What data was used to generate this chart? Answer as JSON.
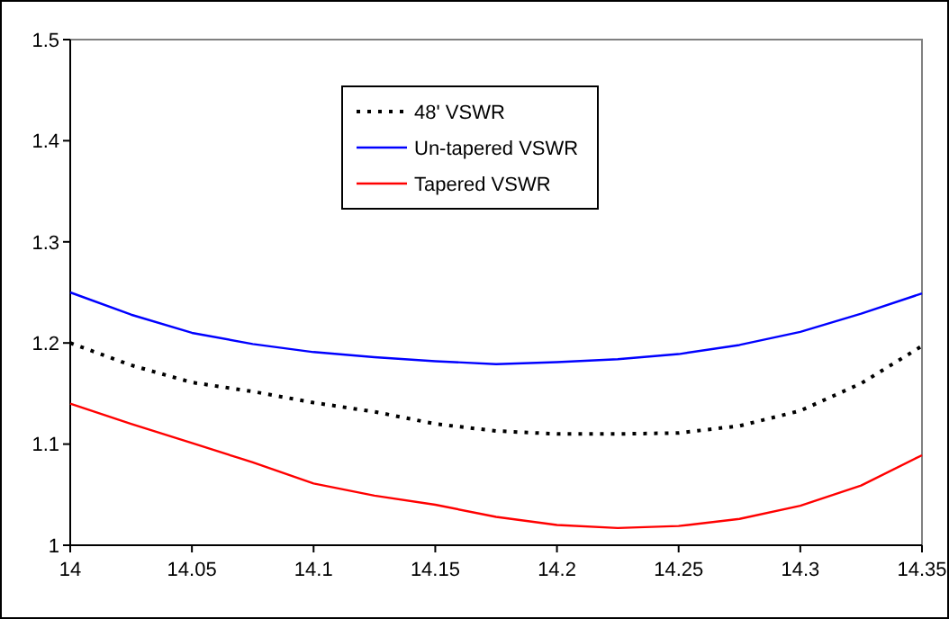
{
  "chart_data": {
    "type": "line",
    "x": [
      14,
      14.025,
      14.05,
      14.075,
      14.1,
      14.125,
      14.15,
      14.175,
      14.2,
      14.225,
      14.25,
      14.275,
      14.3,
      14.325,
      14.35
    ],
    "series": [
      {
        "name": "48' VSWR",
        "color": "#000000",
        "line_style": "dotted",
        "values": [
          1.2,
          1.178,
          1.161,
          1.152,
          1.141,
          1.132,
          1.12,
          1.113,
          1.11,
          1.11,
          1.111,
          1.118,
          1.133,
          1.16,
          1.197
        ]
      },
      {
        "name": "Un-tapered VSWR",
        "color": "#0000ff",
        "line_style": "solid",
        "values": [
          1.25,
          1.228,
          1.21,
          1.199,
          1.191,
          1.186,
          1.182,
          1.179,
          1.181,
          1.184,
          1.189,
          1.198,
          1.211,
          1.229,
          1.249
        ]
      },
      {
        "name": "Tapered VSWR",
        "color": "#ff0000",
        "line_style": "solid",
        "values": [
          1.14,
          1.12,
          1.101,
          1.082,
          1.061,
          1.049,
          1.04,
          1.028,
          1.02,
          1.017,
          1.019,
          1.026,
          1.039,
          1.059,
          1.089
        ]
      }
    ],
    "xlim": [
      14,
      14.35
    ],
    "xticks": [
      14,
      14.05,
      14.1,
      14.15,
      14.2,
      14.25,
      14.3,
      14.35
    ],
    "ylim": [
      1,
      1.5
    ],
    "yticks": [
      1,
      1.1,
      1.2,
      1.3,
      1.4,
      1.5
    ],
    "grid": false,
    "legend": "top"
  }
}
